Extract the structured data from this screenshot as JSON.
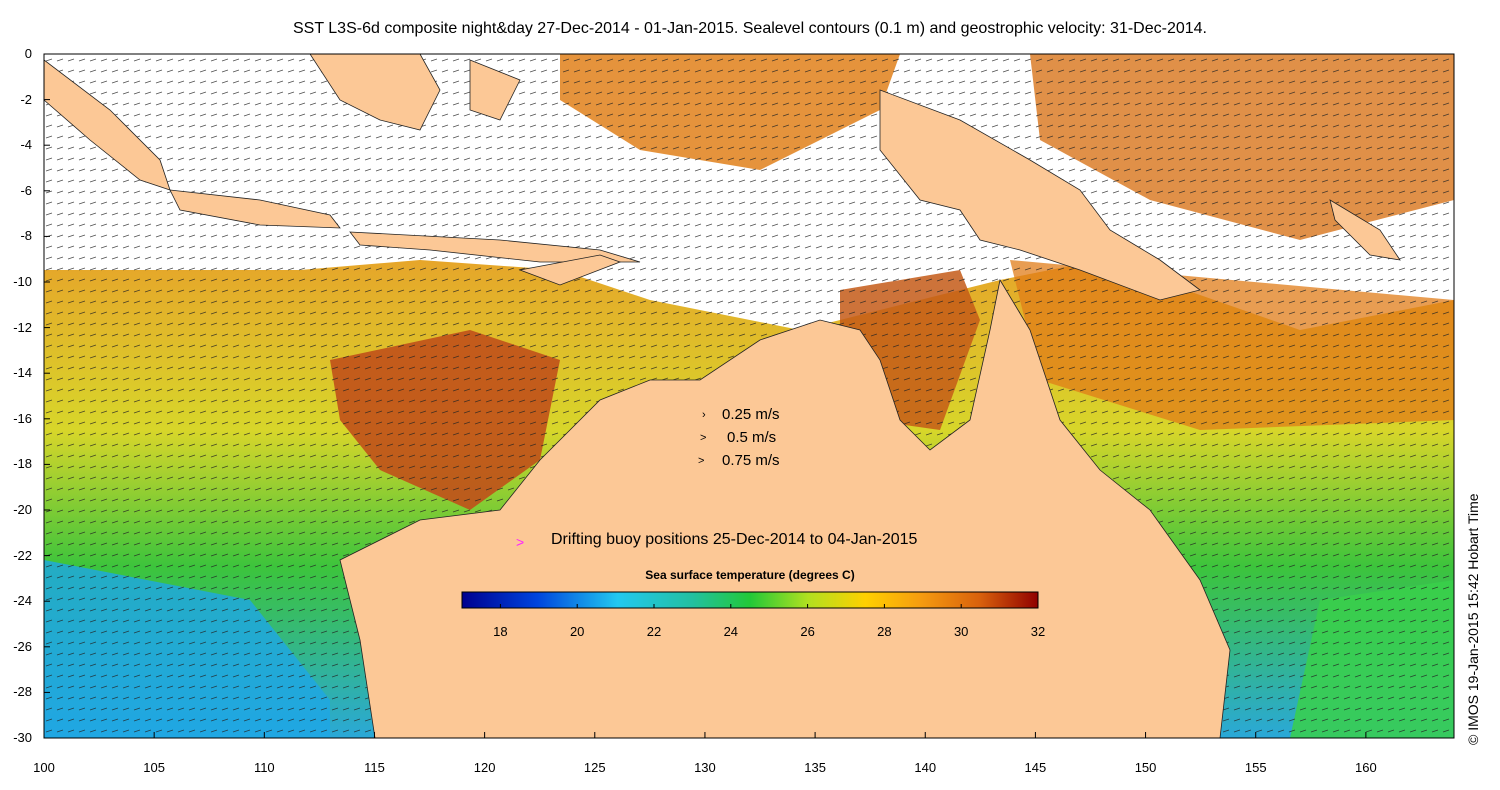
{
  "title": "SST L3S-6d composite night&day 27-Dec-2014 - 01-Jan-2015. Sealevel contours (0.1 m) and geostrophic velocity: 31-Dec-2014.",
  "credit": "© IMOS 19-Jan-2015 15:42 Hobart Time",
  "colors": {
    "land": "#fcc896",
    "ocean_fill": "#ffffff",
    "buoy": "#ff22ff"
  },
  "axes": {
    "x_ticks": [
      "100",
      "105",
      "110",
      "115",
      "120",
      "125",
      "130",
      "135",
      "140",
      "145",
      "150",
      "155",
      "160"
    ],
    "y_ticks": [
      "0",
      "-2",
      "-4",
      "-6",
      "-8",
      "-10",
      "-12",
      "-14",
      "-16",
      "-18",
      "-20",
      "-22",
      "-24",
      "-26",
      "-28",
      "-30"
    ],
    "xlim": [
      100,
      164
    ],
    "ylim": [
      -30,
      0
    ]
  },
  "velocity_legend": {
    "items": [
      {
        "label": "0.25 m/s",
        "speed": 0.25
      },
      {
        "label": "0.5 m/s",
        "speed": 0.5
      },
      {
        "label": "0.75 m/s",
        "speed": 0.75
      }
    ]
  },
  "buoy_legend": {
    "label": "Drifting buoy positions 25-Dec-2014 to 04-Jan-2015",
    "marker": ">"
  },
  "colorbar": {
    "title": "Sea surface temperature (degrees C)",
    "range": [
      17,
      32
    ],
    "ticks": [
      "18",
      "20",
      "22",
      "24",
      "26",
      "28",
      "30",
      "32"
    ]
  }
}
